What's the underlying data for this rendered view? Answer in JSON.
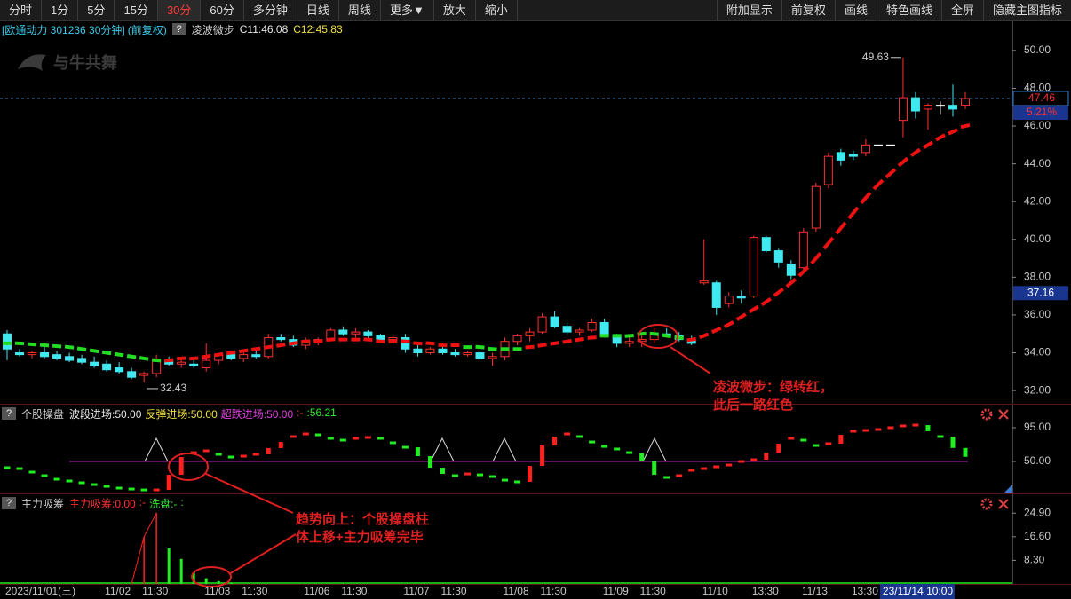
{
  "toolbar": {
    "left": [
      "分时",
      "1分",
      "5分",
      "15分",
      "30分",
      "60分",
      "多分钟",
      "日线",
      "周线",
      "更多▼",
      "放大",
      "缩小"
    ],
    "right": [
      "附加显示",
      "前复权",
      "画线",
      "特色画线",
      "全屏",
      "隐藏主图指标"
    ],
    "active": 4
  },
  "annotations": [
    {
      "lines": [
        "凌波微步：绿转红，",
        "此后一路红色"
      ]
    },
    {
      "lines": [
        "趋势向上：个股操盘柱",
        "体上移+主力吸筹完毕"
      ]
    }
  ],
  "chart_data": [
    {
      "type": "candlestick",
      "title": "[欧通动力 301236 30分钟]",
      "subtitle": "(前复权)",
      "help": "?",
      "indicator": "凌波微步",
      "watermark": "与牛共舞",
      "legend": [
        {
          "text": "C11:46.08",
          "color": "#e8e8e8"
        },
        {
          "text": "C12:45.83",
          "color": "#f0e040"
        }
      ],
      "categories": [
        "2023/11/01(三)",
        null,
        null,
        null,
        null,
        null,
        null,
        null,
        "11/02",
        null,
        null,
        "11:30",
        null,
        null,
        null,
        null,
        "11/03",
        null,
        null,
        "11:30",
        null,
        null,
        null,
        null,
        "11/06",
        null,
        null,
        "11:30",
        null,
        null,
        null,
        null,
        "11/07",
        null,
        null,
        "11:30",
        null,
        null,
        null,
        null,
        "11/08",
        null,
        null,
        "11:30",
        null,
        null,
        null,
        null,
        "11/09",
        null,
        null,
        "11:30",
        null,
        null,
        null,
        null,
        "11/10",
        null,
        null,
        null,
        "13:30",
        null,
        null,
        null,
        "11/13",
        null,
        null,
        null,
        "13:30",
        null,
        null,
        null,
        "23/11/14 10:00",
        null,
        null,
        null,
        null,
        null
      ],
      "open": [
        35.0,
        34.0,
        33.9,
        34.0,
        33.9,
        33.8,
        33.7,
        33.5,
        33.4,
        33.2,
        33.0,
        32.8,
        32.9,
        33.6,
        33.4,
        33.4,
        33.2,
        33.6,
        33.9,
        33.7,
        33.9,
        33.8,
        34.8,
        34.7,
        34.4,
        34.6,
        34.7,
        35.2,
        35.0,
        35.1,
        34.9,
        34.7,
        34.8,
        34.2,
        34.0,
        34.2,
        34.0,
        33.9,
        34.0,
        33.7,
        33.8,
        34.6,
        34.9,
        35.1,
        35.9,
        35.4,
        35.1,
        35.2,
        35.6,
        34.9,
        34.5,
        34.6,
        34.7,
        35.0,
        34.9,
        34.7,
        37.7,
        37.7,
        36.6,
        37.0,
        37.0,
        40.1,
        39.4,
        38.7,
        38.5,
        40.6,
        42.9,
        44.6,
        44.5,
        44.6,
        45.0,
        45.0,
        46.3,
        47.5,
        46.9,
        47.1,
        47.1,
        47.1
      ],
      "high": [
        35.2,
        34.2,
        34.1,
        34.3,
        34.1,
        34.0,
        33.9,
        33.8,
        33.6,
        33.5,
        33.2,
        33.0,
        33.9,
        33.8,
        33.7,
        33.6,
        34.5,
        34.0,
        34.1,
        34.0,
        34.2,
        35.0,
        35.0,
        34.9,
        34.8,
        34.8,
        35.3,
        35.4,
        35.3,
        35.2,
        35.0,
        34.9,
        35.0,
        34.4,
        34.3,
        34.3,
        34.2,
        34.1,
        34.1,
        34.0,
        34.8,
        35.0,
        35.3,
        36.1,
        36.2,
        35.6,
        35.3,
        35.8,
        35.8,
        35.0,
        34.8,
        34.9,
        35.3,
        35.3,
        35.1,
        34.9,
        40.0,
        37.8,
        37.2,
        37.3,
        40.2,
        40.2,
        39.5,
        38.9,
        40.6,
        43.0,
        44.6,
        44.8,
        44.7,
        45.3,
        45.0,
        45.0,
        49.63,
        47.8,
        47.2,
        47.3,
        48.2,
        47.8
      ],
      "low": [
        33.6,
        33.8,
        33.7,
        33.7,
        33.6,
        33.5,
        33.4,
        33.2,
        33.0,
        32.9,
        32.6,
        32.43,
        32.7,
        33.3,
        33.2,
        33.2,
        33.0,
        33.4,
        33.6,
        33.5,
        33.7,
        33.7,
        34.6,
        34.3,
        34.2,
        34.4,
        34.6,
        34.9,
        34.8,
        34.8,
        34.6,
        34.5,
        34.0,
        33.8,
        33.9,
        33.9,
        33.8,
        33.8,
        33.6,
        33.3,
        33.6,
        34.4,
        34.6,
        35.0,
        35.3,
        35.0,
        34.9,
        35.1,
        34.8,
        34.3,
        34.3,
        34.3,
        34.5,
        34.8,
        34.6,
        34.4,
        37.6,
        36.0,
        36.4,
        36.6,
        36.9,
        39.3,
        38.5,
        37.9,
        38.2,
        40.4,
        42.7,
        43.9,
        44.2,
        44.4,
        45.0,
        45.0,
        45.4,
        46.4,
        45.8,
        46.6,
        46.5,
        46.9
      ],
      "close": [
        34.2,
        33.9,
        34.0,
        33.8,
        33.7,
        33.6,
        33.5,
        33.3,
        33.1,
        33.0,
        32.7,
        32.9,
        33.6,
        33.4,
        33.5,
        33.3,
        33.6,
        33.9,
        33.7,
        33.9,
        33.8,
        34.8,
        34.7,
        34.4,
        34.6,
        34.7,
        35.2,
        35.0,
        35.1,
        34.9,
        34.7,
        34.8,
        34.2,
        34.0,
        34.2,
        34.0,
        33.9,
        34.0,
        33.7,
        33.8,
        34.6,
        34.9,
        35.1,
        35.9,
        35.4,
        35.1,
        35.2,
        35.6,
        34.9,
        34.5,
        34.6,
        34.7,
        35.0,
        34.9,
        34.7,
        34.5,
        37.8,
        36.4,
        37.0,
        36.9,
        40.1,
        39.4,
        38.8,
        38.1,
        40.4,
        42.8,
        44.4,
        44.2,
        44.4,
        45.0,
        45.0,
        45.0,
        47.5,
        46.8,
        47.1,
        47.1,
        46.9,
        47.46
      ],
      "trend": [
        {
          "color": "#22dd22",
          "values": [
            34.5,
            34.5,
            34.45,
            34.4,
            34.35,
            34.3,
            34.2,
            34.1,
            34.0,
            33.9,
            33.8,
            33.7,
            33.6,
            null,
            null,
            null,
            null,
            null,
            null,
            null,
            null,
            null,
            null,
            null,
            null,
            null,
            null,
            null,
            null,
            null,
            null,
            null,
            null,
            null,
            null,
            null,
            null,
            34.3,
            34.3,
            34.2,
            34.2,
            34.2,
            null,
            null,
            null,
            null,
            null,
            null,
            34.9,
            34.9,
            34.9,
            35.0,
            35.0,
            34.9,
            34.8,
            null,
            null,
            null,
            null,
            null,
            null,
            null,
            null,
            null,
            null,
            null,
            null,
            null,
            null,
            null,
            null,
            null,
            null,
            null,
            null,
            null,
            null,
            null
          ]
        },
        {
          "color": "#ee1111",
          "values": [
            null,
            null,
            null,
            null,
            null,
            null,
            null,
            null,
            null,
            null,
            null,
            null,
            null,
            33.6,
            33.7,
            33.7,
            33.8,
            33.9,
            34.0,
            34.1,
            34.2,
            34.3,
            34.4,
            34.5,
            34.6,
            34.6,
            34.7,
            34.7,
            34.7,
            34.7,
            34.6,
            34.6,
            34.6,
            34.5,
            34.5,
            34.4,
            34.4,
            null,
            null,
            null,
            null,
            null,
            34.3,
            34.4,
            34.5,
            34.6,
            34.7,
            34.8,
            null,
            null,
            null,
            null,
            null,
            null,
            null,
            34.7,
            34.9,
            35.2,
            35.5,
            35.9,
            36.3,
            36.7,
            37.2,
            37.7,
            38.3,
            39.0,
            39.8,
            40.6,
            41.4,
            42.2,
            42.9,
            43.5,
            44.1,
            44.6,
            45.0,
            45.4,
            45.7,
            46.0
          ]
        }
      ],
      "up_color": "#ff3030",
      "down_color": "#40e8f0",
      "flat_color": "#ffffff",
      "last_line_color": "#3a7fd5",
      "change": {
        "value": 5.21,
        "label": "5.21%"
      },
      "cursor_price": 37.16,
      "ylim": [
        31.3,
        50.7
      ],
      "yticks": [
        {
          "value": 32,
          "label": "32.00"
        },
        {
          "value": 34,
          "label": "34.00"
        },
        {
          "value": 36,
          "label": "36.00"
        },
        {
          "value": 38,
          "label": "38.00"
        },
        {
          "value": 40,
          "label": "40.00"
        },
        {
          "value": 42,
          "label": "42.00"
        },
        {
          "value": 44,
          "label": "44.00"
        },
        {
          "value": 46,
          "label": "46.00"
        },
        {
          "value": 48,
          "label": "48.00"
        },
        {
          "value": 50,
          "label": "50.00"
        }
      ]
    },
    {
      "type": "oscillator",
      "title": "个股操盘",
      "help": "?",
      "legend": [
        {
          "text": "波段进场:50.00",
          "color": "#e8e8e8"
        },
        {
          "text": "反弹进场:50.00",
          "color": "#f0e040"
        },
        {
          "text": "超跌进场:50.00",
          "color": "#e040e0"
        },
        {
          "text": ":-",
          "color": "#ff3030"
        },
        {
          "text": ":56.21",
          "color": "#30ee30"
        }
      ],
      "values": [
        41.7,
        40.5,
        35.8,
        31.1,
        26.3,
        24,
        21.6,
        19.2,
        16.8,
        14.5,
        13.3,
        12.1,
        12.1,
        32.2,
        55.9,
        61.8,
        64.2,
        59.5,
        55.9,
        57.1,
        59.5,
        67.8,
        76,
        83.2,
        86.7,
        85.5,
        80.8,
        78.4,
        80.8,
        82,
        80.8,
        74.9,
        68.9,
        57.1,
        41.7,
        33.4,
        31.1,
        33.4,
        32.2,
        29.9,
        25.1,
        22.8,
        44.1,
        71.3,
        83.2,
        86.7,
        83.2,
        76,
        70.1,
        66.6,
        61.8,
        50,
        32.2,
        28.7,
        31.1,
        38.2,
        40.5,
        42.9,
        45.3,
        50,
        52.4,
        61.8,
        73.7,
        80.8,
        78.4,
        71.3,
        73.7,
        85.5,
        90.3,
        91.4,
        92.6,
        95,
        97.4,
        98.5,
        90.3,
        83.2,
        68,
        56.21
      ],
      "level": 50,
      "level_color": "#c020c0",
      "up_color": "#ff2020",
      "down_color": "#20ee20",
      "ylim": [
        8.6,
        123.4
      ],
      "yticks": [
        {
          "value": 95,
          "label": "95.00"
        },
        {
          "value": 50,
          "label": "50.00"
        }
      ]
    },
    {
      "type": "bar",
      "title": "主力吸筹",
      "help": "?",
      "legend": [
        {
          "text": "主力吸筹:0.00",
          "color": "#ff3030"
        },
        {
          "text": ":-",
          "color": "#ff3030"
        },
        {
          "text": "洗盘:-",
          "color": "#30ee30"
        },
        {
          "text": ":",
          "color": "#30ee30"
        }
      ],
      "values": [
        0,
        0,
        0,
        0,
        0,
        0,
        0,
        0,
        0,
        0,
        0,
        16.6,
        25,
        12.5,
        8.8,
        4,
        2,
        1,
        0.5,
        0,
        0,
        0,
        0,
        0,
        0,
        0,
        0,
        0,
        0,
        0,
        0,
        0,
        0,
        0,
        0,
        0,
        0,
        0,
        0,
        0,
        0,
        0,
        0,
        0,
        0,
        0,
        0,
        0,
        0,
        0,
        0,
        0,
        0,
        0,
        0,
        0,
        0,
        0,
        0,
        0,
        0,
        0,
        0,
        0,
        0,
        0,
        0,
        0,
        0,
        0,
        0,
        0,
        0,
        0,
        0,
        0,
        0,
        0
      ],
      "up_color": "#ff2020",
      "down_color": "#20ee20",
      "ylim": [
        0,
        30.6
      ],
      "yticks": [
        {
          "value": 24.9,
          "label": "24.90"
        },
        {
          "value": 16.6,
          "label": "16.60"
        },
        {
          "value": 8.3,
          "label": "8.30"
        }
      ]
    }
  ]
}
